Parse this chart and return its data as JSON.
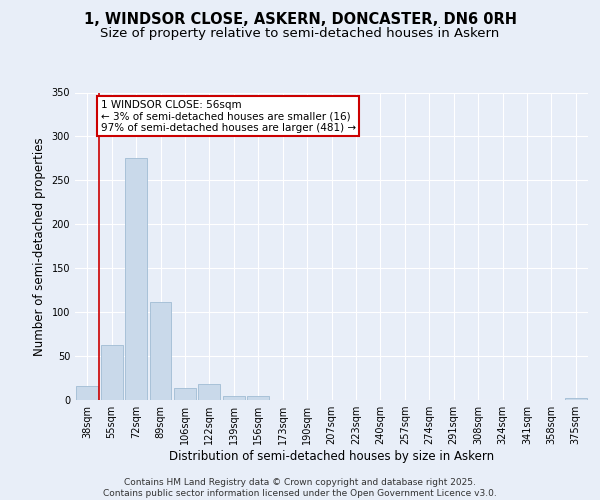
{
  "title_line1": "1, WINDSOR CLOSE, ASKERN, DONCASTER, DN6 0RH",
  "title_line2": "Size of property relative to semi-detached houses in Askern",
  "xlabel": "Distribution of semi-detached houses by size in Askern",
  "ylabel": "Number of semi-detached properties",
  "categories": [
    "38sqm",
    "55sqm",
    "72sqm",
    "89sqm",
    "106sqm",
    "122sqm",
    "139sqm",
    "156sqm",
    "173sqm",
    "190sqm",
    "207sqm",
    "223sqm",
    "240sqm",
    "257sqm",
    "274sqm",
    "291sqm",
    "308sqm",
    "324sqm",
    "341sqm",
    "358sqm",
    "375sqm"
  ],
  "values": [
    16,
    63,
    275,
    112,
    14,
    18,
    5,
    5,
    0,
    0,
    0,
    0,
    0,
    0,
    0,
    0,
    0,
    0,
    0,
    0,
    2
  ],
  "bar_color": "#c9d9ea",
  "bar_edge_color": "#a0bcd4",
  "annotation_text": "1 WINDSOR CLOSE: 56sqm\n← 3% of semi-detached houses are smaller (16)\n97% of semi-detached houses are larger (481) →",
  "annotation_box_color": "#ffffff",
  "annotation_box_edge_color": "#cc0000",
  "highlight_line_color": "#cc0000",
  "ylim": [
    0,
    350
  ],
  "yticks": [
    0,
    50,
    100,
    150,
    200,
    250,
    300,
    350
  ],
  "bg_color": "#e8eef8",
  "plot_bg_color": "#e8eef8",
  "footer_text": "Contains HM Land Registry data © Crown copyright and database right 2025.\nContains public sector information licensed under the Open Government Licence v3.0.",
  "title_fontsize": 10.5,
  "subtitle_fontsize": 9.5,
  "axis_label_fontsize": 8.5,
  "tick_fontsize": 7,
  "annotation_fontsize": 7.5,
  "footer_fontsize": 6.5
}
